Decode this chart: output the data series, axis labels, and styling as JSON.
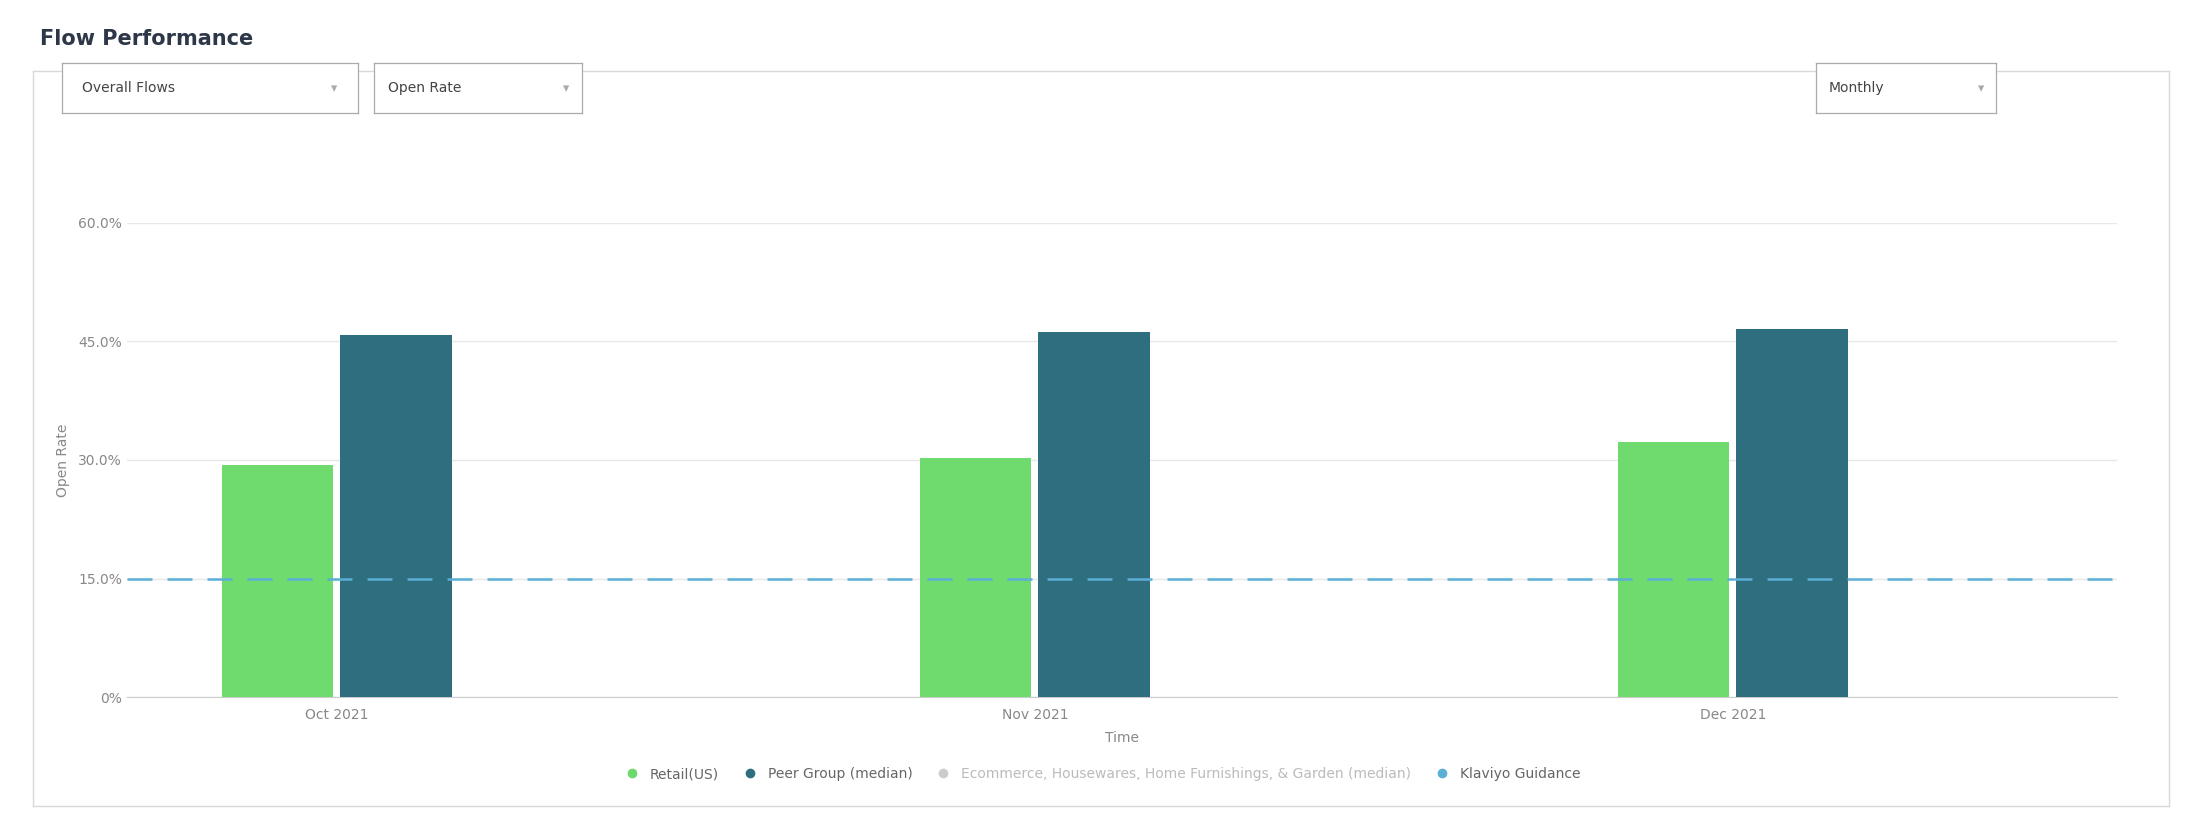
{
  "title": "Flow Performance",
  "xlabel": "Time",
  "ylabel": "Open Rate",
  "background_color": "#ffffff",
  "grid_color": "#e8e8e8",
  "ylim": [
    0,
    0.6
  ],
  "yticks": [
    0.0,
    0.15,
    0.3,
    0.45,
    0.6
  ],
  "months": [
    "Oct 2021",
    "Nov 2021",
    "Dec 2021"
  ],
  "retail_values": [
    0.293,
    0.302,
    0.323
  ],
  "peer_values": [
    0.458,
    0.462,
    0.465
  ],
  "klaviyo_guidance": 0.15,
  "bar_color_retail": "#6fdb6f",
  "bar_color_peer": "#2e6e7e",
  "dashed_line_color": "#5bafd6",
  "legend_items": [
    {
      "label": "Retail(US)",
      "color": "#6cd96c"
    },
    {
      "label": "Peer Group (median)",
      "color": "#2e6e7e"
    },
    {
      "label": "Ecommerce, Housewares, Home Furnishings, & Garden (median)",
      "color": "#cccccc"
    },
    {
      "label": "Klaviyo Guidance",
      "color": "#5bafd6"
    }
  ],
  "dropdown1": "Overall Flows",
  "dropdown2": "Open Rate",
  "dropdown3": "Monthly",
  "title_fontsize": 15,
  "axis_label_fontsize": 10,
  "tick_fontsize": 10,
  "legend_fontsize": 10,
  "bar_width": 0.32
}
